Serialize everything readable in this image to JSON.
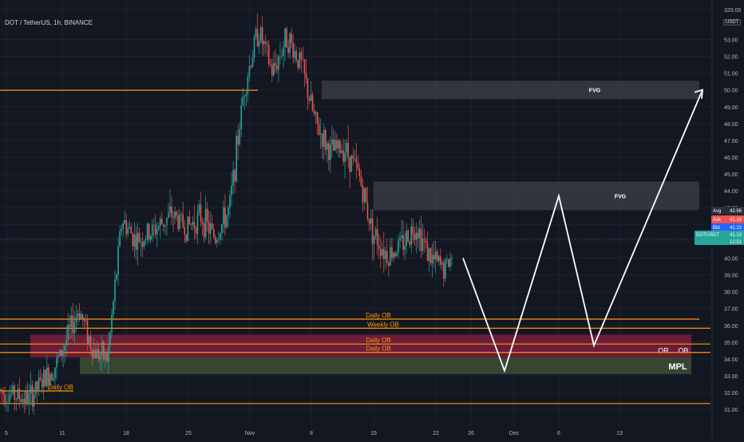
{
  "symbol_title": "DOT / TetherUS, 1h, BINANCE",
  "currency_label": "USDT",
  "colors": {
    "background": "#131722",
    "grid": "#1e222d",
    "up": "#26a69a",
    "down": "#ef5350",
    "orange": "#ff9800",
    "ob_zone": "#7b1d3f",
    "green_zone": "#3d4f35",
    "fvg_zone": "#4a4e5a",
    "arrow": "#ffffff"
  },
  "chart_data": {
    "type": "candlestick",
    "ylim": [
      30.4,
      320.8
    ],
    "y_ticks": [
      "31.00",
      "32.00",
      "33.00",
      "34.00",
      "35.00",
      "36.00",
      "37.00",
      "38.00",
      "39.00",
      "40.00",
      "41.00",
      "42.00",
      "43.00",
      "44.00",
      "45.00",
      "46.00",
      "47.00",
      "48.00",
      "49.00",
      "50.00",
      "51.00",
      "52.00",
      "53.00",
      "320.00"
    ],
    "x_ticks": [
      "5",
      "11",
      "18",
      "25",
      "Nov",
      "8",
      "15",
      "22",
      "26",
      "Dec",
      "6",
      "13"
    ],
    "price_path": [
      {
        "x": 0,
        "y": 32.1
      },
      {
        "x": 4,
        "y": 31.6
      },
      {
        "x": 8,
        "y": 33.8
      },
      {
        "x": 11,
        "y": 37.0
      },
      {
        "x": 13,
        "y": 34.5
      },
      {
        "x": 15,
        "y": 34.0
      },
      {
        "x": 17,
        "y": 42.3
      },
      {
        "x": 19,
        "y": 41.0
      },
      {
        "x": 21,
        "y": 41.5
      },
      {
        "x": 24,
        "y": 42.6
      },
      {
        "x": 26,
        "y": 41.8
      },
      {
        "x": 28,
        "y": 42.5
      },
      {
        "x": 30,
        "y": 41.2
      },
      {
        "x": 32,
        "y": 42.9
      },
      {
        "x": 34,
        "y": 50.0
      },
      {
        "x": 36,
        "y": 53.6
      },
      {
        "x": 38,
        "y": 51.0
      },
      {
        "x": 40,
        "y": 53.2
      },
      {
        "x": 42,
        "y": 51.5
      },
      {
        "x": 44,
        "y": 48.0
      },
      {
        "x": 46,
        "y": 46.3
      },
      {
        "x": 48,
        "y": 46.6
      },
      {
        "x": 50,
        "y": 45.0
      },
      {
        "x": 52,
        "y": 41.5
      },
      {
        "x": 54,
        "y": 40.2
      },
      {
        "x": 56,
        "y": 40.8
      },
      {
        "x": 58,
        "y": 42.0
      },
      {
        "x": 60,
        "y": 40.0
      },
      {
        "x": 62,
        "y": 39.3
      },
      {
        "x": 63,
        "y": 40.1
      }
    ],
    "current_price": "41.13",
    "price_labels": [
      {
        "label": "Avg",
        "value": "42.56"
      },
      {
        "label": "Ask",
        "value": "41.14"
      },
      {
        "label": "Bid",
        "value": "41.13"
      },
      {
        "label": "DOTUSDT",
        "value": "41.13",
        "sub": "12:51"
      }
    ],
    "levels": [
      {
        "price": 49.98,
        "label": ""
      },
      {
        "price": 36.37,
        "label": "Daily OB"
      },
      {
        "price": 35.83,
        "label": "Weekly OB"
      },
      {
        "price": 34.89,
        "label": "Daily OB"
      },
      {
        "price": 34.39,
        "label": "Daily OB"
      },
      {
        "price": 32.1,
        "label": "Daily OB"
      },
      {
        "price": 31.35,
        "label": ""
      }
    ],
    "zones": [
      {
        "label": "FVG",
        "top": 50.55,
        "bottom": 49.45
      },
      {
        "label": "FVG",
        "top": 44.55,
        "bottom": 42.85
      },
      {
        "label": "",
        "top": 35.45,
        "bottom": 34.1
      },
      {
        "label": "MPL",
        "top": 34.1,
        "bottom": 33.1
      }
    ],
    "zone_annotations": [
      "OR",
      "OB"
    ],
    "projection": [
      {
        "label": "",
        "price": 40.0
      },
      {
        "label": "",
        "price": 33.3
      },
      {
        "label": "",
        "price": 43.7
      },
      {
        "label": "",
        "price": 34.8
      },
      {
        "label": "",
        "price": 50.0
      }
    ]
  }
}
